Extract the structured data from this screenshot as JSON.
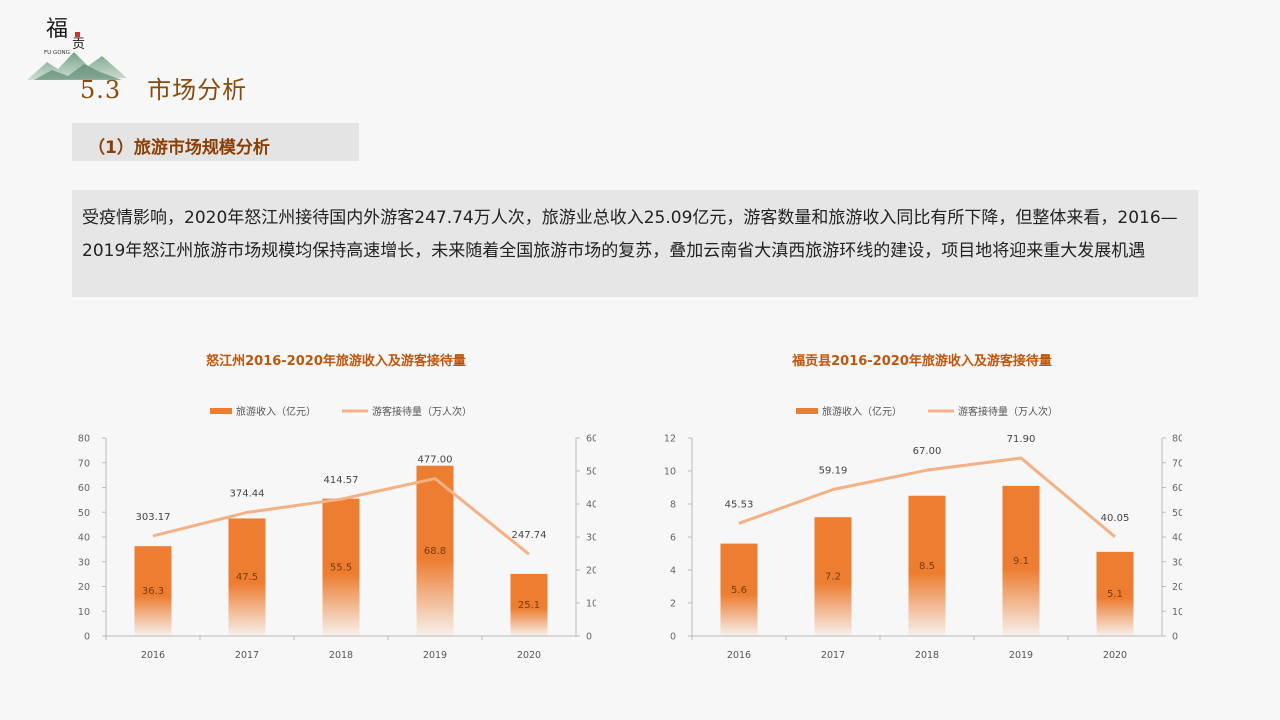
{
  "logo": {
    "mark": "福",
    "mark2": "贡",
    "latin": "FU GONG"
  },
  "section": {
    "number": "5.3",
    "title": "市场分析"
  },
  "subsection": {
    "title": "（1）旅游市场规模分析"
  },
  "paragraph": "受疫情影响，2020年怒江州接待国内外游客247.74万人次，旅游业总收入25.09亿元，游客数量和旅游收入同比有所下降，但整体来看，2016—2019年怒江州旅游市场规模均保持高速增长，未来随着全国旅游市场的复苏，叠加云南省大滇西旅游环线的建设，项目地将迎来重大发展机遇",
  "colors": {
    "bar": "#ed7d31",
    "line": "#f4b183",
    "title": "#c0550d",
    "section": "#8a4a0c"
  },
  "chart_data": [
    {
      "type": "bar",
      "title": "怒江州2016-2020年旅游收入及游客接待量",
      "categories": [
        "2016",
        "2017",
        "2018",
        "2019",
        "2020"
      ],
      "series": [
        {
          "name": "旅游收入（亿元）",
          "kind": "bar",
          "axis": "left",
          "values": [
            36.3,
            47.5,
            55.5,
            68.8,
            25.1
          ],
          "labels": [
            "36.3",
            "47.5",
            "55.5",
            "68.8",
            "25.1"
          ]
        },
        {
          "name": "游客接待量（万人次）",
          "kind": "line",
          "axis": "right",
          "values": [
            303.17,
            374.44,
            414.57,
            477.0,
            247.74
          ],
          "labels": [
            "303.17",
            "374.44",
            "414.57",
            "477.00",
            "247.74"
          ]
        }
      ],
      "ylim": [
        0,
        80
      ],
      "yticks": [
        0,
        10,
        20,
        30,
        40,
        50,
        60,
        70,
        80
      ],
      "y2lim": [
        0,
        600
      ],
      "y2ticks": [
        0,
        100,
        200,
        300,
        400,
        500,
        600
      ],
      "legend": "top"
    },
    {
      "type": "bar",
      "title": "福贡县2016-2020年旅游收入及游客接待量",
      "categories": [
        "2016",
        "2017",
        "2018",
        "2019",
        "2020"
      ],
      "series": [
        {
          "name": "旅游收入（亿元）",
          "kind": "bar",
          "axis": "left",
          "values": [
            5.6,
            7.2,
            8.5,
            9.1,
            5.1
          ],
          "labels": [
            "5.6",
            "7.2",
            "8.5",
            "9.1",
            "5.1"
          ]
        },
        {
          "name": "游客接待量（万人次）",
          "kind": "line",
          "axis": "right",
          "values": [
            45.53,
            59.19,
            67.0,
            71.9,
            40.05
          ],
          "labels": [
            "45.53",
            "59.19",
            "67.00",
            "71.90",
            "40.05"
          ]
        }
      ],
      "ylim": [
        0,
        12
      ],
      "yticks": [
        0,
        2,
        4,
        6,
        8,
        10,
        12
      ],
      "y2lim": [
        0,
        80
      ],
      "y2ticks": [
        0,
        10,
        20,
        30,
        40,
        50,
        60,
        70,
        80
      ],
      "legend": "top"
    }
  ]
}
